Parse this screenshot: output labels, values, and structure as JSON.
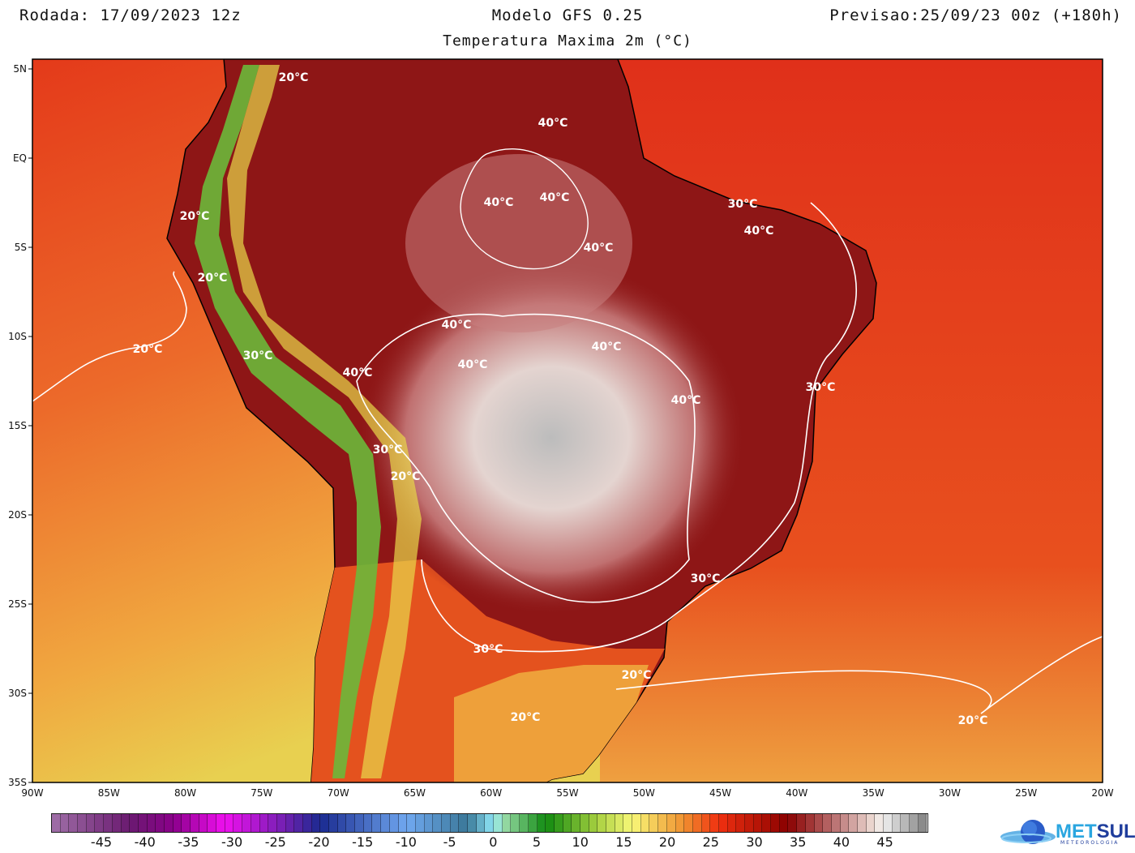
{
  "header": {
    "run": "Rodada: 17/09/2023 12z",
    "model": "Modelo GFS 0.25",
    "forecast": "Previsao:25/09/23 00z (+180h)",
    "variable": "Temperatura Maxima 2m (°C)"
  },
  "map": {
    "region": "South America",
    "lat_labels": [
      "5N",
      "EQ",
      "5S",
      "10S",
      "15S",
      "20S",
      "25S",
      "30S",
      "35S"
    ],
    "lon_labels": [
      "90W",
      "85W",
      "80W",
      "75W",
      "70W",
      "65W",
      "60W",
      "55W",
      "50W",
      "45W",
      "40W",
      "35W",
      "30W",
      "25W",
      "20W"
    ],
    "contour_labels": [
      "20°C",
      "20°C",
      "20°C",
      "20°C",
      "20°C",
      "20°C",
      "20°C",
      "20°C",
      "30°C",
      "30°C",
      "30°C",
      "30°C",
      "30°C",
      "30°C",
      "40°C",
      "40°C",
      "40°C",
      "40°C",
      "40°C",
      "40°C",
      "40°C",
      "40°C",
      "40°C",
      "40°C"
    ],
    "colors": {
      "ocean_warm": "#e8401c",
      "ocean_cool": "#f0b040",
      "land_hot": "#8a1010",
      "land_extreme": "#d8d8d8",
      "andes": "#5cb030"
    }
  },
  "colorbar": {
    "ticks": [
      "-45",
      "-40",
      "-35",
      "-30",
      "-25",
      "-20",
      "-15",
      "-10",
      "-5",
      "0",
      "5",
      "10",
      "15",
      "20",
      "25",
      "30",
      "35",
      "40",
      "45"
    ],
    "units": "°C"
  },
  "logo": {
    "brand_a": "MET",
    "brand_b": "SUL",
    "tagline": "METEOROLOGIA"
  }
}
